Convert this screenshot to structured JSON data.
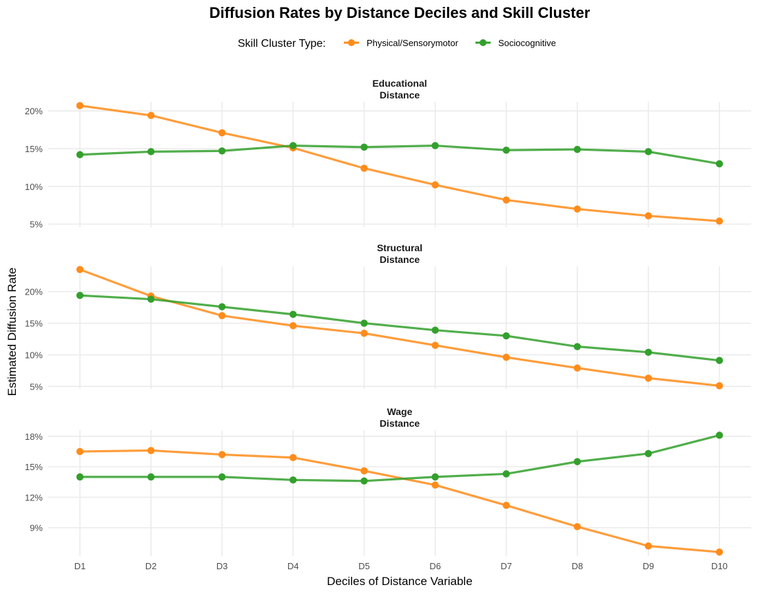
{
  "chart_data": {
    "type": "line",
    "title": "Diffusion Rates by Distance Deciles and Skill Cluster",
    "xlabel": "Deciles of Distance Variable",
    "ylabel": "Estimated Diffusion Rate",
    "legend": {
      "title": "Skill Cluster Type:",
      "placement": "top",
      "entries": [
        {
          "name": "Physical/Sensorymotor",
          "color": "#FF8C1A"
        },
        {
          "name": "Sociocognitive",
          "color": "#33A02C"
        }
      ]
    },
    "categories": [
      "D1",
      "D2",
      "D3",
      "D4",
      "D5",
      "D6",
      "D7",
      "D8",
      "D9",
      "D10"
    ],
    "grid": true,
    "panels": [
      {
        "strip": [
          "Educational",
          "Distance"
        ],
        "ylim": [
          4.6,
          21.2
        ],
        "yticks": [
          5,
          10,
          15,
          20
        ],
        "ytick_labels": [
          "5%",
          "10%",
          "15%",
          "20%"
        ],
        "series": [
          {
            "name": "Physical/Sensorymotor",
            "values": [
              20.7,
              19.4,
              17.1,
              15.1,
              12.4,
              10.2,
              8.2,
              7.0,
              6.1,
              5.4
            ]
          },
          {
            "name": "Sociocognitive",
            "values": [
              14.2,
              14.6,
              14.7,
              15.4,
              15.2,
              15.4,
              14.8,
              14.9,
              14.6,
              13.0
            ]
          }
        ]
      },
      {
        "strip": [
          "Structural",
          "Distance"
        ],
        "ylim": [
          4.6,
          24.0
        ],
        "yticks": [
          5,
          10,
          15,
          20
        ],
        "ytick_labels": [
          "5%",
          "10%",
          "15%",
          "20%"
        ],
        "series": [
          {
            "name": "Physical/Sensorymotor",
            "values": [
              23.5,
              19.3,
              16.2,
              14.6,
              13.4,
              11.5,
              9.6,
              7.9,
              6.3,
              5.1
            ]
          },
          {
            "name": "Sociocognitive",
            "values": [
              19.4,
              18.8,
              17.6,
              16.4,
              15.0,
              13.9,
              13.0,
              11.3,
              10.4,
              9.1
            ]
          }
        ]
      },
      {
        "strip": [
          "Wage",
          "Distance"
        ],
        "ylim": [
          6.2,
          18.6
        ],
        "yticks": [
          9,
          12,
          15,
          18
        ],
        "ytick_labels": [
          "9%",
          "12%",
          "15%",
          "18%"
        ],
        "series": [
          {
            "name": "Physical/Sensorymotor",
            "values": [
              16.5,
              16.6,
              16.2,
              15.9,
              14.6,
              13.2,
              11.2,
              9.1,
              7.2,
              6.6
            ]
          },
          {
            "name": "Sociocognitive",
            "values": [
              14.0,
              14.0,
              14.0,
              13.7,
              13.6,
              14.0,
              14.3,
              15.5,
              16.3,
              18.1
            ]
          }
        ]
      }
    ]
  }
}
